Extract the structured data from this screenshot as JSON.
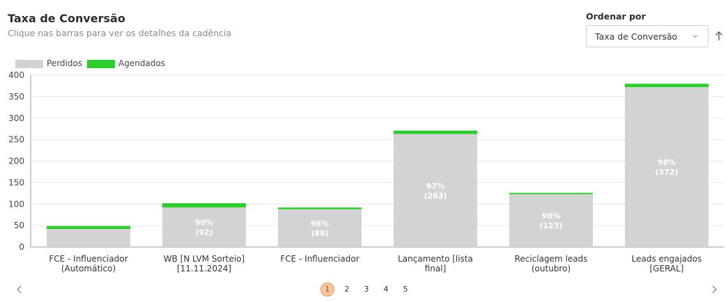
{
  "header": {
    "title": "Taxa de Conversão",
    "subtitle": "Clique nas barras para ver os detalhes da cadência"
  },
  "sort": {
    "label": "Ordenar por",
    "selected": "Taxa de Conversão",
    "direction_icon": "arrow-up-icon"
  },
  "colors": {
    "perdidos": "#d3d3d3",
    "agendados": "#2ecc2e",
    "grid": "#e6e6e6",
    "axis": "#999999"
  },
  "chart_data": {
    "type": "bar",
    "stacked": true,
    "title": "",
    "xlabel": "",
    "ylabel": "",
    "ylim": [
      0,
      400
    ],
    "yticks": [
      0,
      50,
      100,
      150,
      200,
      250,
      300,
      350,
      400
    ],
    "grid": true,
    "legend_position": "top-left",
    "categories": [
      [
        "FCE - Influenciador",
        "(Automático)"
      ],
      [
        "WB [N LVM Sorteio]",
        "[11.11.2024]"
      ],
      [
        "FCE - Influenciador"
      ],
      [
        "Lançamento [lista",
        "final]"
      ],
      [
        "Reciclagem leads",
        "(outubro)"
      ],
      [
        "Leads engajados",
        "[GERAL]"
      ]
    ],
    "series": [
      {
        "name": "Perdidos",
        "values": [
          42,
          92,
          88,
          263,
          123,
          372
        ]
      },
      {
        "name": "Agendados",
        "values": [
          7,
          10,
          4,
          8,
          3,
          8
        ]
      }
    ],
    "bar_labels": [
      null,
      {
        "pct": "90%",
        "count": "(92)"
      },
      {
        "pct": "96%",
        "count": "(88)"
      },
      {
        "pct": "97%",
        "count": "(263)"
      },
      {
        "pct": "98%",
        "count": "(123)"
      },
      {
        "pct": "98%",
        "count": "(372)"
      }
    ]
  },
  "pagination": {
    "pages": [
      "1",
      "2",
      "3",
      "4",
      "5"
    ],
    "current": "1",
    "prev_icon": "chevron-left-icon",
    "next_icon": "chevron-right-icon"
  }
}
